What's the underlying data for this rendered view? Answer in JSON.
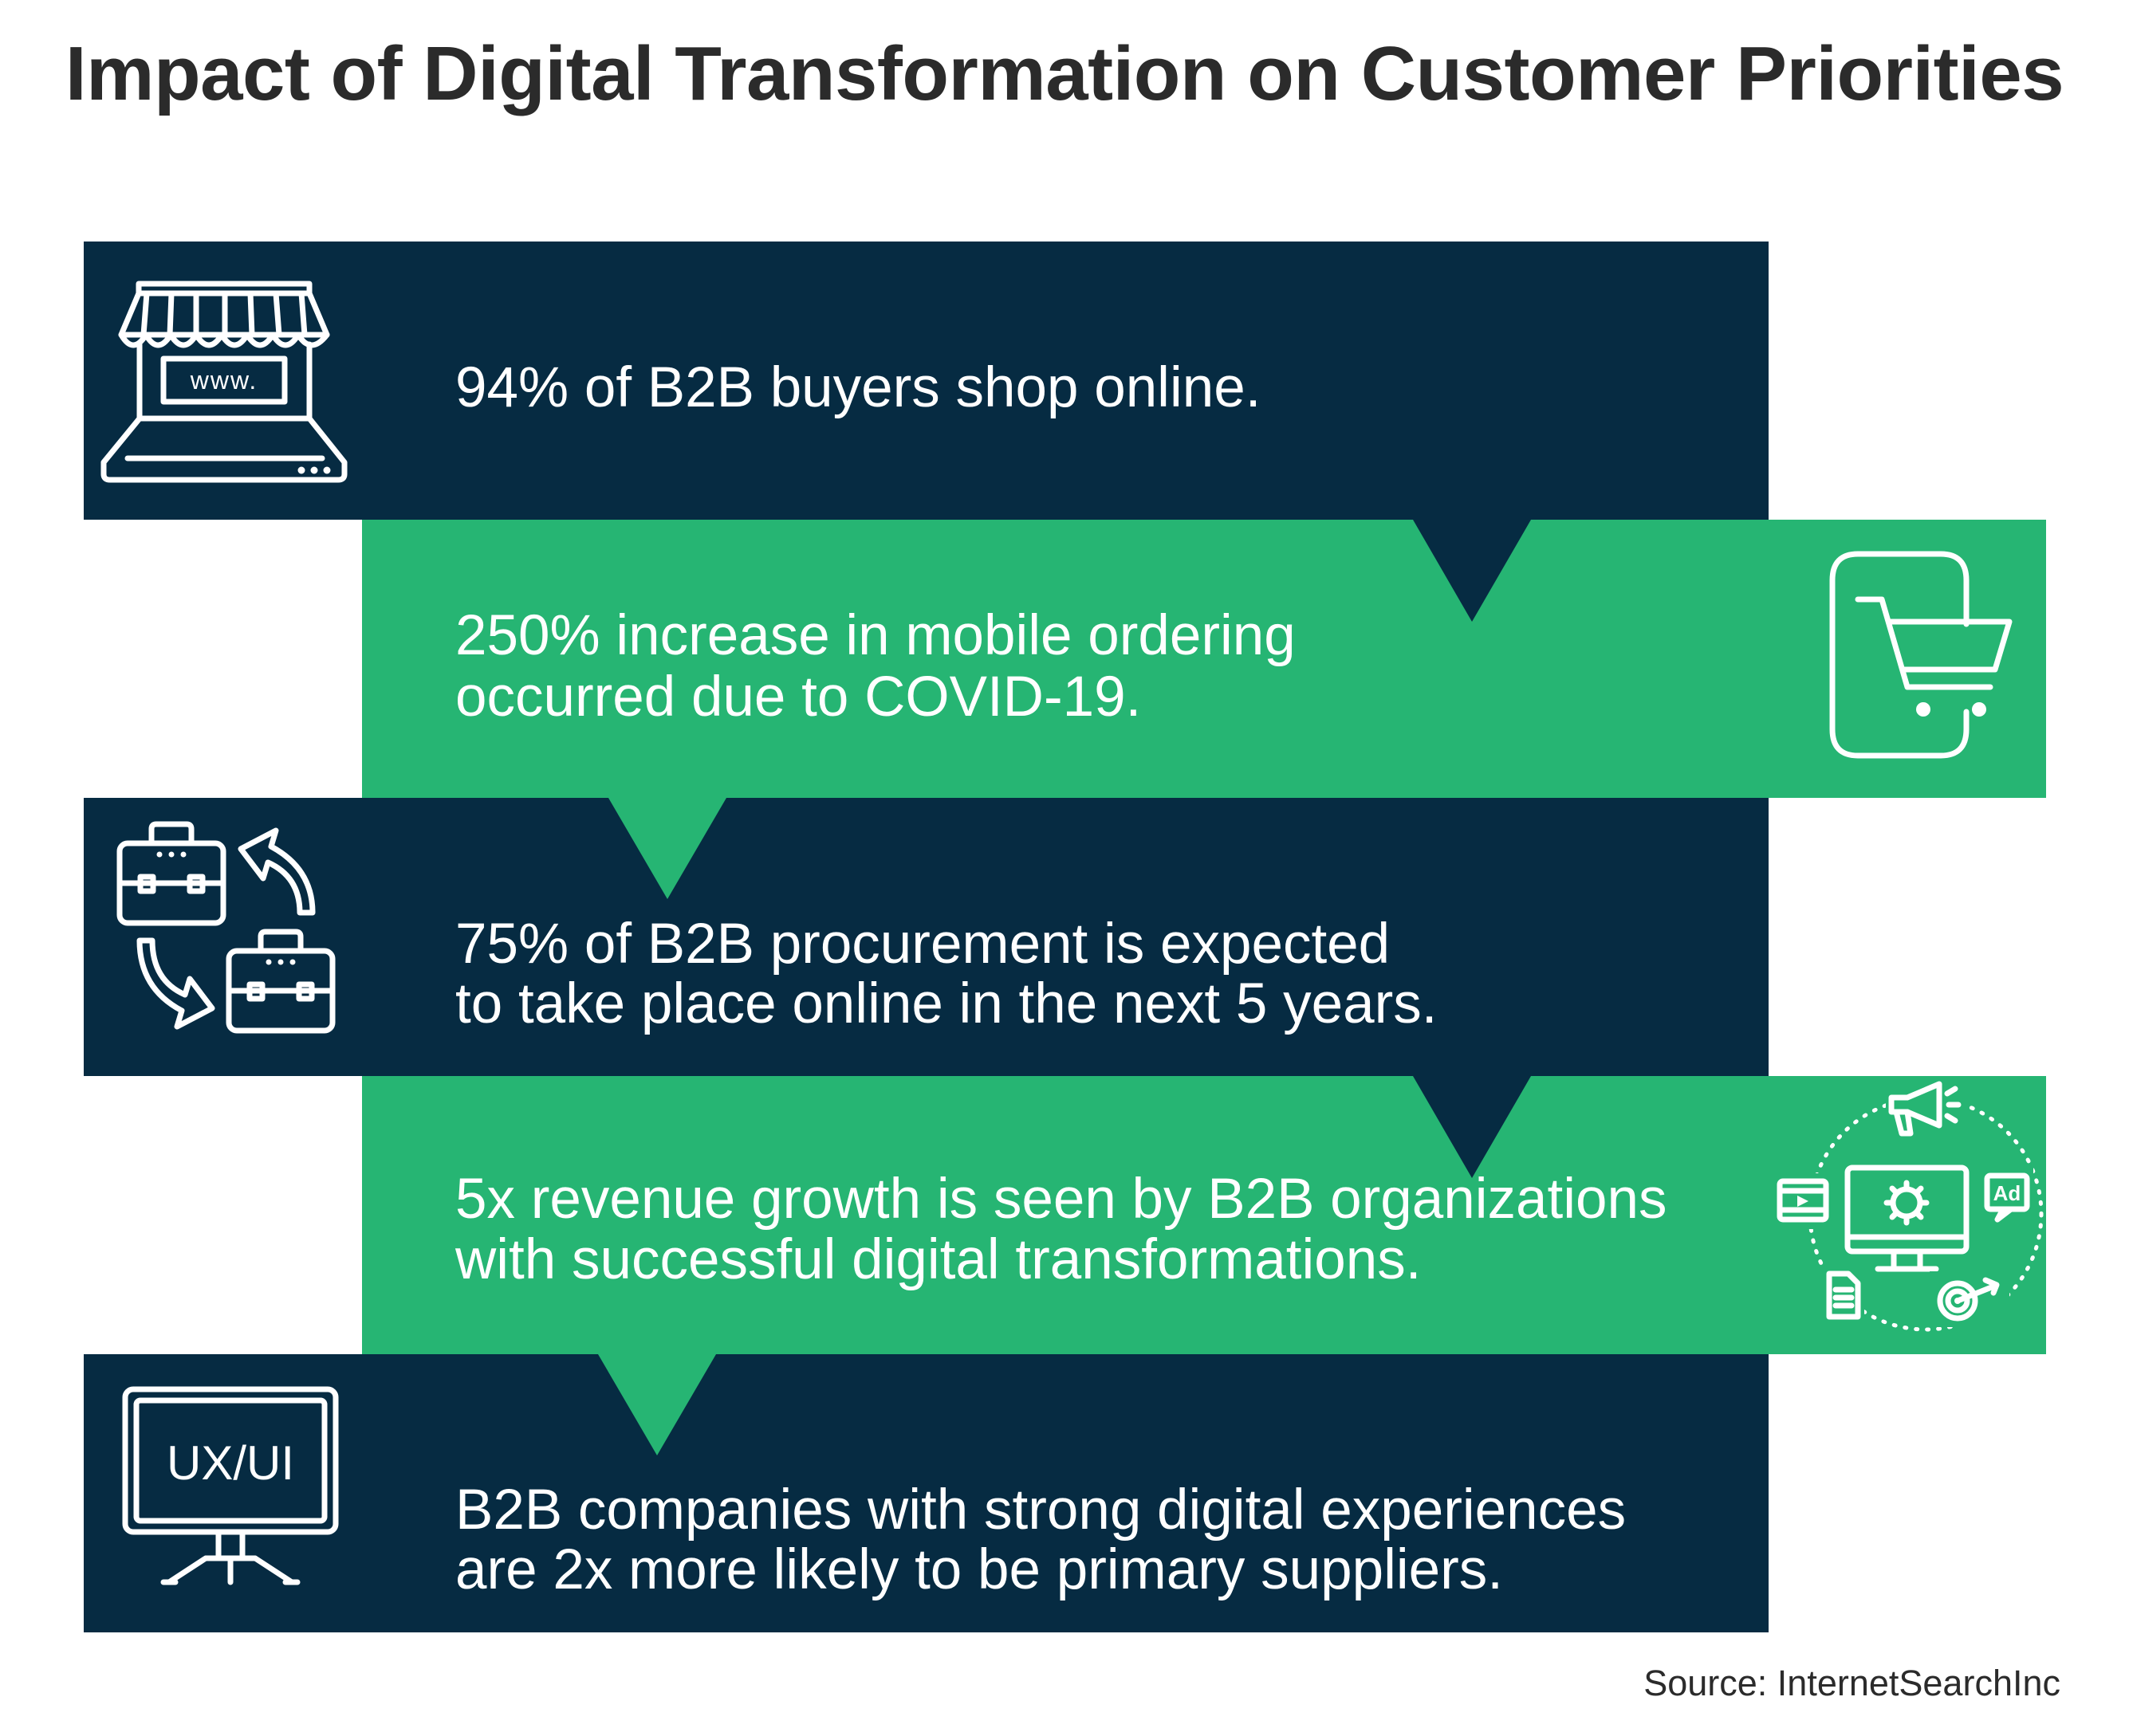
{
  "title": "Impact of Digital Transformation on Customer Priorities",
  "source": "Source: InternetSearchInc",
  "colors": {
    "navy": "#062b42",
    "green": "#26b573",
    "text": "#2b2b2b"
  },
  "panels": [
    {
      "icon": "laptop-storefront-icon",
      "icon_label": "www.",
      "lines": [
        "94% of B2B buyers shop online."
      ]
    },
    {
      "icon": "mobile-cart-icon",
      "lines": [
        "250% increase in mobile ordering",
        "occurred due to COVID-19."
      ]
    },
    {
      "icon": "briefcase-exchange-icon",
      "lines": [
        "75% of B2B procurement is expected",
        "to take place online in the next 5 years."
      ]
    },
    {
      "icon": "digital-marketing-cycle-icon",
      "icon_label": "Ad",
      "lines": [
        "5x revenue growth is seen by B2B organizations",
        "with successful digital transformations."
      ]
    },
    {
      "icon": "ux-ui-monitor-icon",
      "icon_label": "UX/UI",
      "lines": [
        "B2B companies with strong digital experiences",
        "are 2x more likely to be primary suppliers."
      ]
    }
  ]
}
